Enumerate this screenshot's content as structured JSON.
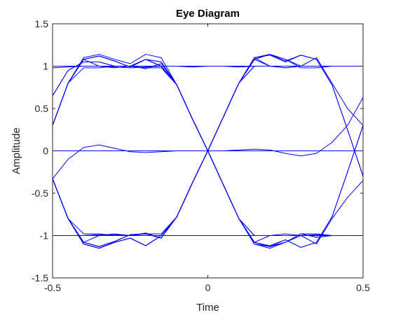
{
  "chart_data": {
    "type": "line",
    "title": "Eye Diagram",
    "xlabel": "Time",
    "ylabel": "Amplitude",
    "xlim": [
      -0.5,
      0.5
    ],
    "ylim": [
      -1.5,
      1.5
    ],
    "xticks": [
      "-0.5",
      "0",
      "0.5"
    ],
    "xtick_values": [
      -0.5,
      0,
      0.5
    ],
    "yticks": [
      "1.5",
      "1",
      "0.5",
      "0",
      "-0.5",
      "-1",
      "-1.5"
    ],
    "ytick_values": [
      1.5,
      1,
      0.5,
      0,
      -0.5,
      -1,
      -1.5
    ],
    "grid": false,
    "box": true,
    "line_color": "#0000FF",
    "x": [
      -0.5,
      -0.45,
      -0.4,
      -0.35,
      -0.3,
      -0.25,
      -0.2,
      -0.15,
      -0.1,
      -0.05,
      0,
      0.05,
      0.1,
      0.15,
      0.2,
      0.25,
      0.3,
      0.35,
      0.4,
      0.45,
      0.5
    ],
    "traces": [
      [
        -0.33,
        -0.8,
        -1.08,
        -1.13,
        -1.07,
        -0.99,
        -0.98,
        -1.03,
        -0.78,
        -0.38,
        0.0,
        0.4,
        0.8,
        1.1,
        1.0,
        0.98,
        1.0,
        1.0,
        1.0,
        1.0,
        1.0
      ],
      [
        -0.33,
        -0.8,
        -1.08,
        -1.13,
        -1.07,
        -0.99,
        -0.98,
        -1.03,
        -0.78,
        -0.38,
        0.0,
        0.4,
        0.8,
        1.08,
        1.14,
        1.08,
        0.98,
        0.98,
        1.0,
        1.0,
        1.0
      ],
      [
        -0.33,
        -0.8,
        -1.1,
        -1.15,
        -1.08,
        -1.03,
        -1.12,
        -1.0,
        -0.78,
        -0.38,
        0.0,
        -0.4,
        -0.8,
        -1.08,
        -1.13,
        -1.08,
        -0.98,
        -1.02,
        -1.0,
        -1.0,
        -1.0
      ],
      [
        -0.33,
        -0.8,
        -1.1,
        -1.15,
        -1.08,
        -1.03,
        -1.12,
        -1.0,
        -0.78,
        -0.38,
        0.0,
        -0.4,
        -0.8,
        -1.1,
        -1.13,
        -1.05,
        -1.14,
        -1.08,
        -0.78,
        -0.25,
        0.3
      ],
      [
        -0.33,
        -0.8,
        -1.08,
        -1.13,
        -1.07,
        -0.99,
        -0.98,
        -1.03,
        -0.78,
        -0.38,
        0.0,
        -0.4,
        -0.8,
        -1.1,
        -1.15,
        -1.08,
        -1.0,
        -1.1,
        -0.8,
        -0.55,
        -0.35
      ],
      [
        -0.33,
        -0.8,
        -1.08,
        -1.13,
        -1.07,
        -0.99,
        -0.98,
        -1.03,
        -0.78,
        -0.38,
        0.0,
        -0.4,
        -0.8,
        -1.08,
        -1.13,
        -1.08,
        -0.98,
        -0.98,
        -1.0,
        -1.0,
        -1.0
      ],
      [
        -0.33,
        -0.8,
        -1.1,
        -1.15,
        -1.08,
        -1.03,
        -1.12,
        -1.0,
        -0.78,
        -0.38,
        0.0,
        0.4,
        0.8,
        1.08,
        1.14,
        1.06,
        1.13,
        1.08,
        0.78,
        0.25,
        -0.3
      ],
      [
        0.3,
        0.8,
        1.1,
        1.14,
        1.08,
        1.03,
        1.14,
        1.1,
        0.78,
        0.38,
        0.0,
        -0.4,
        -0.8,
        -1.08,
        -1.13,
        -1.08,
        -0.98,
        -1.02,
        -1.0,
        -1.0,
        -1.0
      ],
      [
        0.3,
        0.8,
        1.08,
        1.12,
        1.06,
        0.99,
        1.08,
        1.0,
        0.78,
        0.38,
        0.0,
        -0.4,
        -0.8,
        -1.08,
        -1.12,
        -1.05,
        -1.14,
        -1.08,
        -0.78,
        -0.25,
        0.3
      ],
      [
        0.3,
        0.8,
        1.08,
        1.12,
        1.06,
        0.99,
        1.08,
        1.0,
        0.78,
        0.38,
        0.0,
        0.4,
        0.8,
        1.1,
        1.14,
        1.08,
        1.0,
        1.1,
        0.8,
        0.5,
        0.3
      ],
      [
        0.3,
        0.8,
        1.08,
        1.12,
        1.06,
        0.99,
        1.08,
        1.0,
        0.78,
        0.38,
        0.0,
        0.4,
        0.8,
        1.1,
        1.13,
        1.05,
        1.13,
        1.08,
        0.78,
        0.25,
        -0.3
      ],
      [
        0.65,
        0.95,
        1.05,
        1.05,
        1.0,
        1.0,
        1.08,
        1.05,
        0.78,
        0.38,
        0.0,
        0.4,
        0.8,
        1.08,
        1.0,
        0.98,
        1.0,
        1.0,
        1.0,
        1.0,
        1.0
      ],
      [
        0.65,
        0.95,
        1.05,
        1.05,
        1.0,
        1.0,
        1.08,
        1.05,
        0.78,
        0.38,
        0.0,
        -0.4,
        -0.8,
        -1.08,
        -1.0,
        -0.98,
        -1.0,
        -1.0,
        -1.0,
        -1.0,
        -1.0
      ],
      [
        0.3,
        0.8,
        1.08,
        1.0,
        0.98,
        1.0,
        0.97,
        1.03,
        0.78,
        0.38,
        0.0,
        0.4,
        0.8,
        1.0,
        1.0,
        1.0,
        1.0,
        1.0,
        1.0,
        1.0,
        1.0
      ],
      [
        0.3,
        0.8,
        0.98,
        0.98,
        1.0,
        1.0,
        0.98,
        0.98,
        0.78,
        0.38,
        0.0,
        -0.4,
        -0.8,
        -1.0,
        -1.0,
        -1.0,
        -1.0,
        -1.0,
        -1.0,
        -1.0,
        -1.0
      ],
      [
        -0.33,
        -0.8,
        -0.98,
        -0.98,
        -1.0,
        -1.0,
        -0.98,
        -0.98,
        -0.78,
        -0.38,
        0.0,
        0.4,
        0.8,
        1.0,
        1.0,
        1.0,
        1.0,
        1.0,
        1.0,
        1.0,
        1.0
      ],
      [
        -0.33,
        -0.8,
        -1.08,
        -1.0,
        -0.98,
        -1.0,
        -0.97,
        -1.03,
        -0.78,
        -0.38,
        0.0,
        -0.4,
        -0.8,
        -1.0,
        -1.0,
        -1.0,
        -1.0,
        -1.0,
        -1.0,
        -1.0,
        -1.0
      ],
      [
        1.0,
        1.0,
        1.0,
        1.0,
        1.0,
        1.0,
        1.0,
        1.0,
        1.0,
        1.0,
        1.0,
        1.0,
        1.0,
        1.0,
        1.0,
        1.0,
        1.0,
        1.0,
        1.0,
        1.0,
        1.0
      ],
      [
        0.98,
        0.99,
        1.0,
        1.0,
        0.99,
        0.98,
        0.99,
        1.0,
        1.0,
        0.99,
        1.0,
        1.0,
        0.99,
        1.0,
        1.0,
        1.0,
        1.0,
        1.0,
        1.0,
        1.0,
        1.0
      ],
      [
        -1.0,
        -1.0,
        -1.0,
        -1.0,
        -1.0,
        -1.0,
        -1.0,
        -1.0,
        -1.0,
        -1.0,
        -1.0,
        -1.0,
        -1.0,
        -1.0,
        -1.0,
        -1.0,
        -1.0,
        -1.0,
        -1.0,
        -1.0,
        -1.0
      ],
      [
        -1.0,
        -1.0,
        -1.0,
        -0.99,
        -0.99,
        -1.0,
        -1.0,
        -1.0,
        -1.0,
        -1.0,
        -1.0,
        -1.0,
        -1.0,
        -1.0,
        -1.0,
        -1.0,
        -1.0,
        -0.99,
        -1.0,
        -1.0,
        -1.0
      ],
      [
        0.0,
        0.0,
        0.0,
        0.0,
        0.0,
        0.0,
        0.0,
        0.0,
        0.0,
        0.0,
        0.0,
        0.0,
        0.0,
        0.0,
        0.0,
        0.0,
        0.0,
        0.0,
        0.0,
        0.0,
        0.0
      ],
      [
        -0.33,
        -0.1,
        0.04,
        0.07,
        0.03,
        -0.01,
        -0.02,
        -0.01,
        0.0,
        0.0,
        0.0,
        0.0,
        0.01,
        0.02,
        0.01,
        -0.03,
        -0.06,
        -0.03,
        0.1,
        0.3,
        0.63
      ]
    ]
  }
}
